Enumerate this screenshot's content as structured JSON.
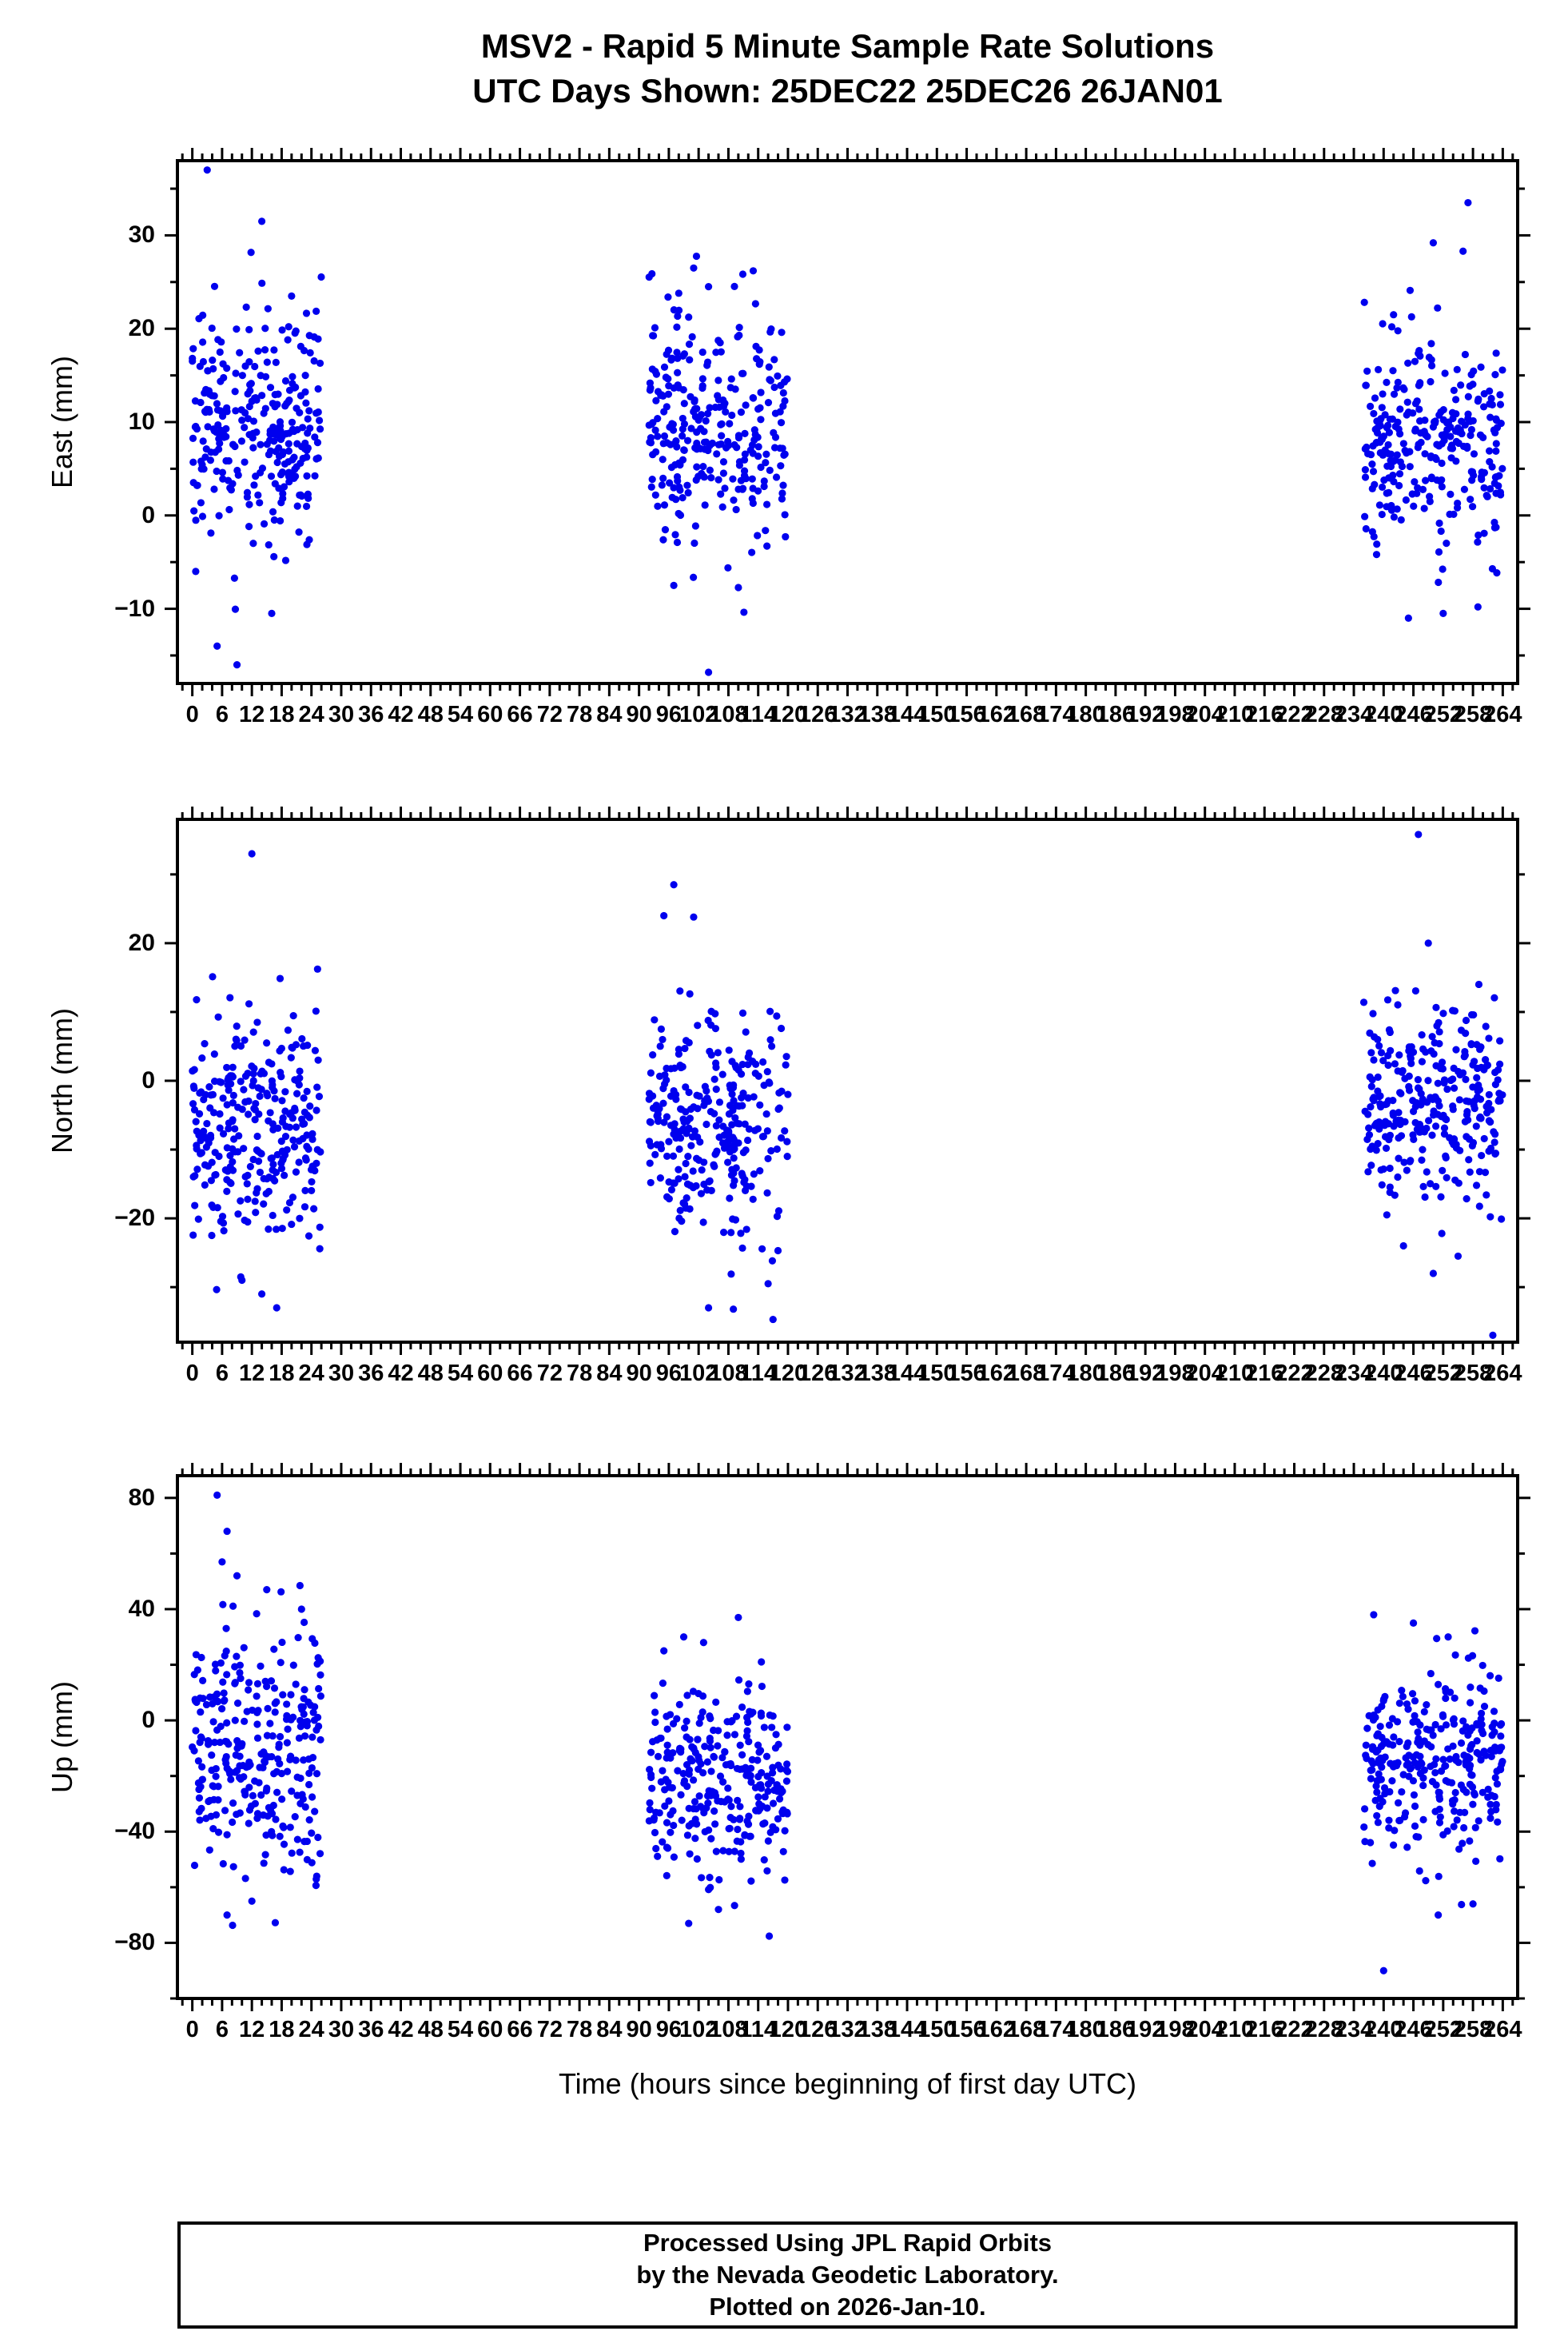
{
  "title": {
    "line1": "MSV2 - Rapid 5 Minute Sample Rate Solutions",
    "line2": "UTC Days Shown:  25DEC22 25DEC26 26JAN01"
  },
  "footer": {
    "line1": "Processed Using JPL Rapid Orbits",
    "line2": "by the Nevada Geodetic Laboratory.",
    "line3": "Plotted on 2026-Jan-10."
  },
  "colors": {
    "point": "#0000ee",
    "frame": "#000000"
  },
  "chart_data": {
    "type": "scatter",
    "title": "MSV2 - Rapid 5 Minute Sample Rate Solutions",
    "subtitle": "UTC Days Shown:  25DEC22 25DEC26 26JAN01",
    "legend": "none",
    "grid": false,
    "x_axis": {
      "label": "Time (hours since beginning of first day UTC)",
      "lim": [
        -3,
        267
      ],
      "major_step": 6,
      "minor_step": 2,
      "tick_labels": [
        0,
        6,
        12,
        18,
        24,
        30,
        36,
        42,
        48,
        54,
        60,
        66,
        72,
        78,
        84,
        90,
        96,
        102,
        108,
        114,
        120,
        126,
        132,
        138,
        144,
        150,
        156,
        162,
        168,
        174,
        180,
        186,
        192,
        198,
        204,
        210,
        216,
        222,
        228,
        234,
        240,
        246,
        252,
        258,
        264
      ]
    },
    "panels": [
      {
        "name": "east",
        "ylabel": "East (mm)",
        "ylim": [
          -18,
          38
        ],
        "yticks": [
          -10,
          0,
          10,
          20,
          30
        ],
        "y_minor_step": 5,
        "seed": 11,
        "clusters": [
          {
            "x_range": [
              0,
              26
            ],
            "count": 288,
            "y_mean": 9,
            "y_sd": 6.5
          },
          {
            "x_range": [
              92,
              120
            ],
            "count": 288,
            "y_mean": 9,
            "y_sd": 6.0
          },
          {
            "x_range": [
              236,
              264
            ],
            "count": 288,
            "y_mean": 8,
            "y_sd": 5.5
          }
        ],
        "outliers": [
          [
            3,
            37
          ],
          [
            14,
            31.5
          ],
          [
            20,
            23.5
          ],
          [
            101,
            26.5
          ],
          [
            104,
            24.5
          ],
          [
            113,
            26.2
          ],
          [
            98,
            23.8
          ],
          [
            257,
            33.5
          ],
          [
            250,
            29.2
          ],
          [
            256,
            28.3
          ],
          [
            242,
            21.5
          ],
          [
            5,
            -14
          ],
          [
            9,
            -16
          ],
          [
            16,
            -10.5
          ],
          [
            104,
            -16.8
          ],
          [
            97,
            -7.5
          ],
          [
            245,
            -11
          ],
          [
            252,
            -10.5
          ],
          [
            259,
            -9.8
          ]
        ]
      },
      {
        "name": "north",
        "ylabel": "North (mm)",
        "ylim": [
          -38,
          38
        ],
        "yticks": [
          -20,
          0,
          20
        ],
        "y_minor_step": 10,
        "seed": 22,
        "clusters": [
          {
            "x_range": [
              0,
              26
            ],
            "count": 288,
            "y_mean": -7,
            "y_sd": 9.0
          },
          {
            "x_range": [
              92,
              120
            ],
            "count": 288,
            "y_mean": -7,
            "y_sd": 7.5
          },
          {
            "x_range": [
              236,
              264
            ],
            "count": 288,
            "y_mean": -4,
            "y_sd": 7.5
          }
        ],
        "outliers": [
          [
            12,
            33
          ],
          [
            97,
            28.5
          ],
          [
            95,
            24
          ],
          [
            101,
            23.8
          ],
          [
            247,
            35.8
          ],
          [
            249,
            20
          ],
          [
            104,
            -33
          ],
          [
            109,
            -33.2
          ],
          [
            116,
            -29.5
          ],
          [
            14,
            -31
          ],
          [
            17,
            -33
          ],
          [
            10,
            -29
          ],
          [
            262,
            -37
          ],
          [
            250,
            -28
          ],
          [
            255,
            -25.5
          ],
          [
            244,
            -24
          ]
        ]
      },
      {
        "name": "up",
        "ylabel": "Up (mm)",
        "ylim": [
          -100,
          88
        ],
        "yticks": [
          -80,
          -40,
          0,
          40,
          80
        ],
        "y_minor_step": 20,
        "seed": 33,
        "clusters": [
          {
            "x_range": [
              0,
              26
            ],
            "count": 288,
            "y_mean": -12,
            "y_sd": 24
          },
          {
            "x_range": [
              92,
              120
            ],
            "count": 288,
            "y_mean": -22,
            "y_sd": 17
          },
          {
            "x_range": [
              236,
              264
            ],
            "count": 288,
            "y_mean": -15,
            "y_sd": 15
          }
        ],
        "outliers": [
          [
            5,
            81
          ],
          [
            7,
            68
          ],
          [
            6,
            57
          ],
          [
            9,
            52
          ],
          [
            15,
            47
          ],
          [
            22,
            40
          ],
          [
            99,
            30
          ],
          [
            103,
            28
          ],
          [
            110,
            37
          ],
          [
            95,
            25
          ],
          [
            238,
            38
          ],
          [
            246,
            35
          ],
          [
            253,
            30
          ],
          [
            240,
            -90
          ],
          [
            7,
            -70
          ],
          [
            12,
            -65
          ],
          [
            100,
            -73
          ],
          [
            106,
            -68
          ],
          [
            251,
            -70
          ],
          [
            258,
            -66
          ]
        ]
      }
    ]
  }
}
